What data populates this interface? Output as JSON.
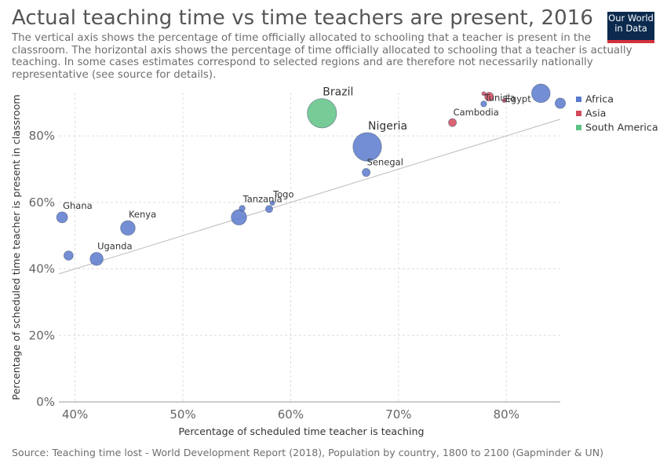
{
  "title": "Actual teaching time vs time teachers are present, 2016",
  "subtitle": "The vertical axis shows the percentage of time officially allocated to schooling that a teacher is present in the classroom. The horizontal axis shows the percentage of time officially allocated to schooling that a teacher is actually teaching. In some cases estimates correspond to selected regions and are therefore not necessarily nationally representative (see source for details).",
  "logo": {
    "line1": "Our World",
    "line2": "in Data"
  },
  "source": "Source: Teaching time lost - World Development Report (2018), Population by country, 1800 to 2100 (Gapminder & UN)",
  "chart_data": {
    "type": "scatter",
    "xlabel": "Percentage of scheduled time teacher is teaching",
    "ylabel": "Percentage of scheduled time teacher is present in classroom",
    "xlim": [
      38.5,
      85
    ],
    "ylim": [
      0,
      93
    ],
    "xticks": [
      40,
      50,
      60,
      70,
      80
    ],
    "yticks": [
      0,
      20,
      40,
      60,
      80
    ],
    "xtick_labels": [
      "40%",
      "50%",
      "60%",
      "70%",
      "80%"
    ],
    "ytick_labels": [
      "0%",
      "20%",
      "40%",
      "60%",
      "80%"
    ],
    "grid": true,
    "legend_position": "right",
    "trend_line": {
      "x": [
        38.5,
        85
      ],
      "y": [
        38.5,
        85
      ]
    },
    "series": [
      {
        "name": "Africa",
        "color": "#5b7acc"
      },
      {
        "name": "Asia",
        "color": "#d34a5a"
      },
      {
        "name": "South America",
        "color": "#5fc285"
      }
    ],
    "points": [
      {
        "label": "Ghana",
        "x": 38.8,
        "y": 55.5,
        "size": 28,
        "region": "Africa"
      },
      {
        "label": "",
        "x": 39.4,
        "y": 44.0,
        "size": 20,
        "region": "Africa"
      },
      {
        "label": "Uganda",
        "x": 42.0,
        "y": 43.0,
        "size": 40,
        "region": "Africa"
      },
      {
        "label": "Kenya",
        "x": 44.9,
        "y": 52.3,
        "size": 50,
        "region": "Africa"
      },
      {
        "label": "",
        "x": 55.2,
        "y": 55.5,
        "size": 55,
        "region": "Africa"
      },
      {
        "label": "Tanzania",
        "x": 55.5,
        "y": 58.2,
        "size": 8,
        "region": "Africa"
      },
      {
        "label": "",
        "x": 58.0,
        "y": 58.0,
        "size": 12,
        "region": "Africa"
      },
      {
        "label": "Togo",
        "x": 58.3,
        "y": 59.8,
        "size": 5,
        "region": "Africa"
      },
      {
        "label": "Brazil",
        "x": 62.9,
        "y": 86.8,
        "size": 200,
        "region": "South America"
      },
      {
        "label": "Senegal",
        "x": 67.0,
        "y": 69.0,
        "size": 15,
        "region": "Africa"
      },
      {
        "label": "Nigeria",
        "x": 67.1,
        "y": 76.7,
        "size": 190,
        "region": "Africa"
      },
      {
        "label": "Cambodia",
        "x": 75.0,
        "y": 84.0,
        "size": 15,
        "region": "Asia"
      },
      {
        "label": "Tunisia",
        "x": 77.9,
        "y": 89.6,
        "size": 8,
        "region": "Africa"
      },
      {
        "label": "",
        "x": 77.9,
        "y": 92.7,
        "size": 3,
        "region": "Asia"
      },
      {
        "label": "",
        "x": 78.4,
        "y": 91.8,
        "size": 18,
        "region": "Asia"
      },
      {
        "label": "Egypt",
        "x": 79.8,
        "y": 90.6,
        "size": 2,
        "region": "Asia"
      },
      {
        "label": "",
        "x": 83.2,
        "y": 92.8,
        "size": 80,
        "region": "Africa"
      },
      {
        "label": "",
        "x": 85.0,
        "y": 89.8,
        "size": 25,
        "region": "Africa"
      }
    ]
  }
}
